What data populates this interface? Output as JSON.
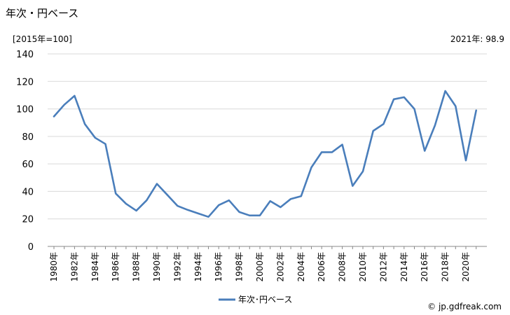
{
  "header": {
    "title": "年次・円ベース",
    "unit_label": "[2015年=100]",
    "latest_note": "2021年: 98.9",
    "credit": "© jp.gdfreak.com"
  },
  "chart_data": {
    "type": "line",
    "x": [
      1980,
      1981,
      1982,
      1983,
      1984,
      1985,
      1986,
      1987,
      1988,
      1989,
      1990,
      1991,
      1992,
      1993,
      1994,
      1995,
      1996,
      1997,
      1998,
      1999,
      2000,
      2001,
      2002,
      2003,
      2004,
      2005,
      2006,
      2007,
      2008,
      2009,
      2010,
      2011,
      2012,
      2013,
      2014,
      2015,
      2016,
      2017,
      2018,
      2019,
      2020,
      2021
    ],
    "x_tick_labels": [
      "1980年",
      "1982年",
      "1984年",
      "1986年",
      "1988年",
      "1990年",
      "1992年",
      "1994年",
      "1996年",
      "1998年",
      "2000年",
      "2002年",
      "2004年",
      "2006年",
      "2008年",
      "2010年",
      "2012年",
      "2014年",
      "2016年",
      "2018年",
      "2020年"
    ],
    "y_ticks": [
      0,
      20,
      40,
      60,
      80,
      100,
      120,
      140
    ],
    "ylim": [
      0,
      140
    ],
    "series": [
      {
        "name": "年次･円ベース",
        "color": "#4a7ebb",
        "values": [
          94.5,
          103.0,
          109.5,
          89.0,
          79.0,
          74.5,
          38.5,
          31.0,
          26.0,
          33.5,
          45.5,
          37.5,
          29.5,
          26.5,
          24.0,
          21.5,
          30.0,
          33.5,
          25.0,
          22.5,
          22.5,
          33.0,
          28.5,
          34.5,
          36.5,
          57.5,
          68.5,
          68.5,
          74.0,
          44.0,
          54.5,
          84.0,
          89.0,
          107.0,
          108.5,
          100.0,
          69.5,
          88.0,
          113.0,
          102.0,
          62.5,
          98.9
        ]
      }
    ],
    "grid": true,
    "legend_position": "bottom"
  }
}
